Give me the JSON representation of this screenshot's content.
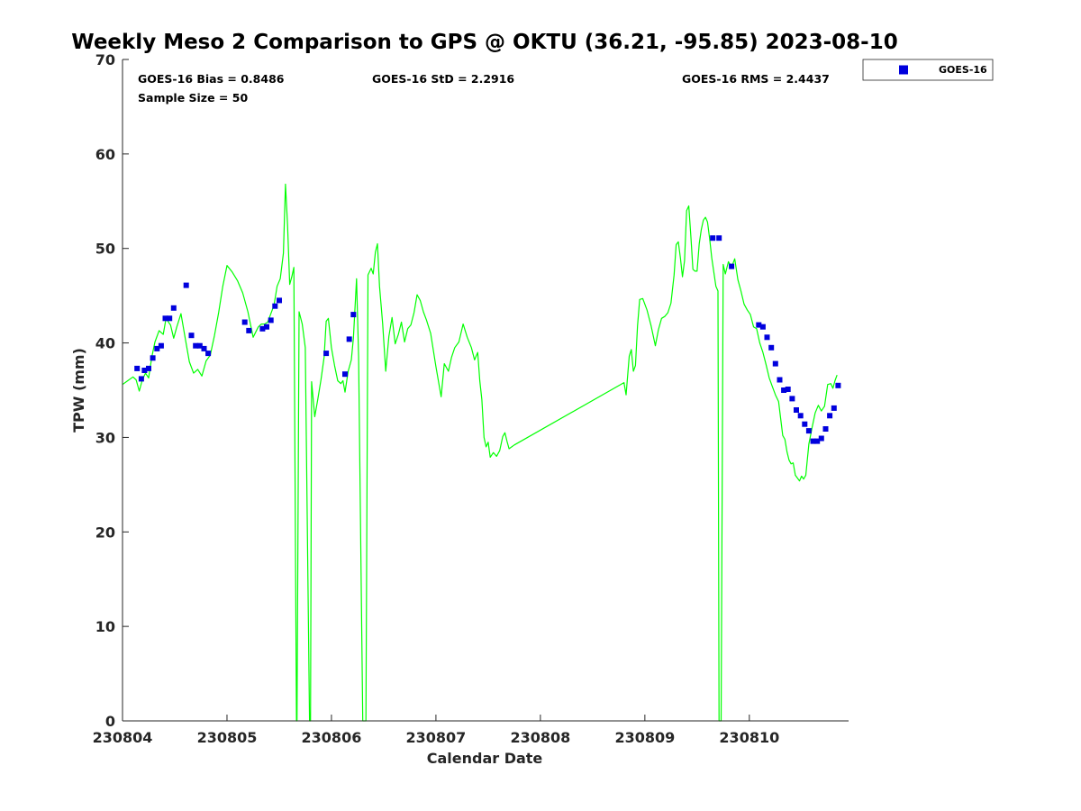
{
  "chart_data": {
    "type": "scatter",
    "title": "Weekly Meso 2 Comparison to GPS @ OKTU (36.21, -95.85) 2023-08-10",
    "xlabel": "Calendar Date",
    "ylabel": "TPW (mm)",
    "xlim": [
      0,
      6.95
    ],
    "ylim": [
      0,
      70
    ],
    "grid": false,
    "legend_placement": "outside-top-right",
    "x_ticks": [
      {
        "value": 0,
        "label": "230804"
      },
      {
        "value": 1,
        "label": "230805"
      },
      {
        "value": 2,
        "label": "230806"
      },
      {
        "value": 3,
        "label": "230807"
      },
      {
        "value": 4,
        "label": "230808"
      },
      {
        "value": 5,
        "label": "230809"
      },
      {
        "value": 6,
        "label": "230810"
      }
    ],
    "y_ticks": [
      {
        "value": 0,
        "label": "0"
      },
      {
        "value": 10,
        "label": "10"
      },
      {
        "value": 20,
        "label": "20"
      },
      {
        "value": 30,
        "label": "30"
      },
      {
        "value": 40,
        "label": "40"
      },
      {
        "value": 50,
        "label": "50"
      },
      {
        "value": 60,
        "label": "60"
      },
      {
        "value": 70,
        "label": "70"
      }
    ],
    "stats": {
      "bias": "GOES-16 Bias = 0.8486",
      "std": "GOES-16 StD = 2.2916",
      "rms": "GOES-16 RMS = 2.4437",
      "sample": "Sample Size = 50"
    },
    "legend": [
      "GOES-16"
    ],
    "colors": {
      "gps_line": "#00ff00",
      "goes_marker": "#0000dd",
      "axis": "#262626"
    },
    "x_units": "days since 2023-08-04 00:00 UTC (tick labels are YYMMDD)",
    "series": [
      {
        "kind": "line",
        "points": [
          [
            0.0,
            35.6
          ],
          [
            0.05,
            36.0
          ],
          [
            0.1,
            36.4
          ],
          [
            0.13,
            36.1
          ],
          [
            0.16,
            34.9
          ],
          [
            0.19,
            36.1
          ],
          [
            0.22,
            36.8
          ],
          [
            0.25,
            36.3
          ],
          [
            0.28,
            38.5
          ],
          [
            0.31,
            40.1
          ],
          [
            0.35,
            41.3
          ],
          [
            0.39,
            40.9
          ],
          [
            0.42,
            42.8
          ],
          [
            0.44,
            42.2
          ],
          [
            0.46,
            41.9
          ],
          [
            0.49,
            40.5
          ],
          [
            0.52,
            41.7
          ],
          [
            0.56,
            43.1
          ],
          [
            0.6,
            40.5
          ],
          [
            0.64,
            38.0
          ],
          [
            0.68,
            36.8
          ],
          [
            0.72,
            37.2
          ],
          [
            0.76,
            36.5
          ],
          [
            0.8,
            38.1
          ],
          [
            0.84,
            38.7
          ],
          [
            0.88,
            40.8
          ],
          [
            0.92,
            43.2
          ],
          [
            0.96,
            46.0
          ],
          [
            1.0,
            48.2
          ],
          [
            1.05,
            47.5
          ],
          [
            1.1,
            46.6
          ],
          [
            1.15,
            45.3
          ],
          [
            1.2,
            43.3
          ],
          [
            1.25,
            40.6
          ],
          [
            1.3,
            41.7
          ],
          [
            1.33,
            42.0
          ],
          [
            1.36,
            42.0
          ],
          [
            1.39,
            42.2
          ],
          [
            1.42,
            43.1
          ],
          [
            1.45,
            44.0
          ],
          [
            1.48,
            46.0
          ],
          [
            1.51,
            46.8
          ],
          [
            1.54,
            49.5
          ],
          [
            1.56,
            56.8
          ],
          [
            1.58,
            52.5
          ],
          [
            1.6,
            46.2
          ],
          [
            1.62,
            47.0
          ],
          [
            1.64,
            48.0
          ],
          [
            1.665,
            0
          ],
          [
            1.67,
            0
          ],
          [
            1.69,
            43.3
          ],
          [
            1.72,
            42.0
          ],
          [
            1.75,
            39.5
          ],
          [
            1.79,
            0
          ],
          [
            1.8,
            0
          ],
          [
            1.81,
            35.9
          ],
          [
            1.84,
            32.2
          ],
          [
            1.87,
            34.1
          ],
          [
            1.9,
            36.1
          ],
          [
            1.93,
            38.5
          ],
          [
            1.95,
            42.3
          ],
          [
            1.97,
            42.6
          ],
          [
            2.0,
            39.5
          ],
          [
            2.03,
            37.6
          ],
          [
            2.06,
            36.0
          ],
          [
            2.09,
            35.7
          ],
          [
            2.11,
            36.0
          ],
          [
            2.13,
            34.8
          ],
          [
            2.16,
            37.0
          ],
          [
            2.19,
            38.2
          ],
          [
            2.21,
            40.5
          ],
          [
            2.24,
            46.8
          ],
          [
            2.26,
            38.5
          ],
          [
            2.3,
            0
          ],
          [
            2.33,
            0
          ],
          [
            2.35,
            47.2
          ],
          [
            2.38,
            47.9
          ],
          [
            2.4,
            47.3
          ],
          [
            2.42,
            49.6
          ],
          [
            2.44,
            50.5
          ],
          [
            2.46,
            46.0
          ],
          [
            2.49,
            42.0
          ],
          [
            2.52,
            37.0
          ],
          [
            2.55,
            40.7
          ],
          [
            2.58,
            42.7
          ],
          [
            2.61,
            39.9
          ],
          [
            2.64,
            40.9
          ],
          [
            2.67,
            42.2
          ],
          [
            2.7,
            40.1
          ],
          [
            2.73,
            41.5
          ],
          [
            2.76,
            41.9
          ],
          [
            2.79,
            43.2
          ],
          [
            2.82,
            45.1
          ],
          [
            2.85,
            44.5
          ],
          [
            2.88,
            43.3
          ],
          [
            2.91,
            42.4
          ],
          [
            2.95,
            41.0
          ],
          [
            3.0,
            37.5
          ],
          [
            3.05,
            34.3
          ],
          [
            3.08,
            37.8
          ],
          [
            3.12,
            37.0
          ],
          [
            3.15,
            38.5
          ],
          [
            3.18,
            39.5
          ],
          [
            3.22,
            40.1
          ],
          [
            3.26,
            42.0
          ],
          [
            3.3,
            40.6
          ],
          [
            3.34,
            39.5
          ],
          [
            3.37,
            38.2
          ],
          [
            3.4,
            39.0
          ],
          [
            3.42,
            36.0
          ],
          [
            3.44,
            34.0
          ],
          [
            3.46,
            30.0
          ],
          [
            3.48,
            29.0
          ],
          [
            3.5,
            29.5
          ],
          [
            3.52,
            27.9
          ],
          [
            3.55,
            28.4
          ],
          [
            3.58,
            28.0
          ],
          [
            3.61,
            28.6
          ],
          [
            3.64,
            30.1
          ],
          [
            3.66,
            30.5
          ],
          [
            3.68,
            29.6
          ],
          [
            3.7,
            28.8
          ],
          [
            3.75,
            29.2
          ],
          [
            4.8,
            35.8
          ],
          [
            4.82,
            34.5
          ],
          [
            4.85,
            38.6
          ],
          [
            4.87,
            39.3
          ],
          [
            4.89,
            37.0
          ],
          [
            4.91,
            37.6
          ],
          [
            4.93,
            41.8
          ],
          [
            4.95,
            44.6
          ],
          [
            4.98,
            44.7
          ],
          [
            5.02,
            43.5
          ],
          [
            5.06,
            41.8
          ],
          [
            5.1,
            39.7
          ],
          [
            5.13,
            41.4
          ],
          [
            5.16,
            42.6
          ],
          [
            5.19,
            42.8
          ],
          [
            5.22,
            43.2
          ],
          [
            5.25,
            44.2
          ],
          [
            5.28,
            47.2
          ],
          [
            5.3,
            50.4
          ],
          [
            5.32,
            50.7
          ],
          [
            5.34,
            49.0
          ],
          [
            5.36,
            47.0
          ],
          [
            5.38,
            48.7
          ],
          [
            5.4,
            54.0
          ],
          [
            5.42,
            54.5
          ],
          [
            5.44,
            51.3
          ],
          [
            5.46,
            47.8
          ],
          [
            5.48,
            47.6
          ],
          [
            5.5,
            47.6
          ],
          [
            5.52,
            50.5
          ],
          [
            5.54,
            52.0
          ],
          [
            5.56,
            53.0
          ],
          [
            5.58,
            53.3
          ],
          [
            5.6,
            52.8
          ],
          [
            5.62,
            51.0
          ],
          [
            5.64,
            49.0
          ],
          [
            5.66,
            47.5
          ],
          [
            5.68,
            46.0
          ],
          [
            5.7,
            45.5
          ],
          [
            5.71,
            0
          ],
          [
            5.73,
            0
          ],
          [
            5.75,
            48.3
          ],
          [
            5.77,
            47.3
          ],
          [
            5.8,
            48.6
          ],
          [
            5.83,
            48.0
          ],
          [
            5.86,
            48.9
          ],
          [
            5.89,
            46.7
          ],
          [
            5.92,
            45.5
          ],
          [
            5.95,
            44.1
          ],
          [
            5.98,
            43.5
          ],
          [
            6.01,
            43.0
          ],
          [
            6.04,
            41.7
          ],
          [
            6.07,
            41.5
          ],
          [
            6.1,
            40.0
          ],
          [
            6.13,
            39.0
          ],
          [
            6.16,
            37.7
          ],
          [
            6.19,
            36.3
          ],
          [
            6.22,
            35.4
          ],
          [
            6.25,
            34.5
          ],
          [
            6.28,
            33.8
          ],
          [
            6.3,
            32.0
          ],
          [
            6.32,
            30.2
          ],
          [
            6.34,
            29.8
          ],
          [
            6.36,
            28.5
          ],
          [
            6.38,
            27.6
          ],
          [
            6.4,
            27.2
          ],
          [
            6.42,
            27.3
          ],
          [
            6.44,
            26.0
          ],
          [
            6.46,
            25.7
          ],
          [
            6.48,
            25.4
          ],
          [
            6.5,
            25.9
          ],
          [
            6.52,
            25.6
          ],
          [
            6.54,
            26.0
          ],
          [
            6.57,
            29.3
          ],
          [
            6.6,
            31.0
          ],
          [
            6.63,
            32.6
          ],
          [
            6.66,
            33.4
          ],
          [
            6.69,
            32.8
          ],
          [
            6.72,
            33.3
          ],
          [
            6.75,
            35.6
          ],
          [
            6.78,
            35.7
          ],
          [
            6.8,
            35.2
          ],
          [
            6.82,
            36.0
          ],
          [
            6.84,
            36.6
          ]
        ]
      },
      {
        "kind": "marker",
        "name": "GOES-16",
        "points": [
          [
            0.14,
            37.3
          ],
          [
            0.18,
            36.2
          ],
          [
            0.21,
            37.1
          ],
          [
            0.25,
            37.3
          ],
          [
            0.29,
            38.4
          ],
          [
            0.33,
            39.4
          ],
          [
            0.37,
            39.7
          ],
          [
            0.41,
            42.6
          ],
          [
            0.45,
            42.6
          ],
          [
            0.49,
            43.7
          ],
          [
            0.61,
            46.1
          ],
          [
            0.66,
            40.8
          ],
          [
            0.7,
            39.7
          ],
          [
            0.74,
            39.7
          ],
          [
            0.78,
            39.4
          ],
          [
            0.82,
            38.9
          ],
          [
            1.17,
            42.2
          ],
          [
            1.21,
            41.3
          ],
          [
            1.34,
            41.5
          ],
          [
            1.38,
            41.7
          ],
          [
            1.42,
            42.4
          ],
          [
            1.46,
            43.9
          ],
          [
            1.5,
            44.5
          ],
          [
            1.95,
            38.9
          ],
          [
            2.13,
            36.7
          ],
          [
            2.17,
            40.4
          ],
          [
            2.21,
            43.0
          ],
          [
            5.65,
            51.1
          ],
          [
            5.71,
            51.1
          ],
          [
            5.83,
            48.1
          ],
          [
            6.09,
            41.9
          ],
          [
            6.13,
            41.7
          ],
          [
            6.17,
            40.6
          ],
          [
            6.21,
            39.5
          ],
          [
            6.25,
            37.8
          ],
          [
            6.29,
            36.1
          ],
          [
            6.33,
            35.0
          ],
          [
            6.37,
            35.1
          ],
          [
            6.41,
            34.1
          ],
          [
            6.45,
            32.9
          ],
          [
            6.49,
            32.3
          ],
          [
            6.53,
            31.4
          ],
          [
            6.57,
            30.7
          ],
          [
            6.61,
            29.6
          ],
          [
            6.65,
            29.6
          ],
          [
            6.69,
            29.9
          ],
          [
            6.73,
            30.9
          ],
          [
            6.77,
            32.3
          ],
          [
            6.81,
            33.1
          ],
          [
            6.85,
            35.5
          ]
        ]
      }
    ]
  }
}
